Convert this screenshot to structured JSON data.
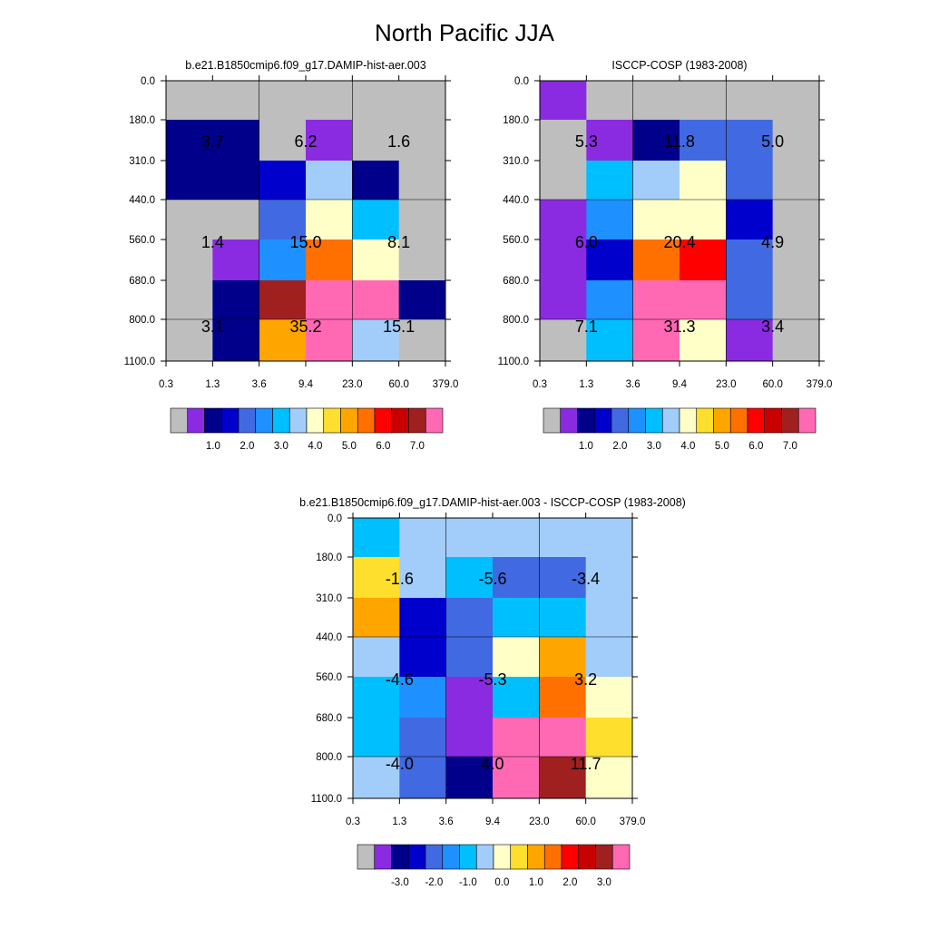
{
  "title": "North Pacific JJA",
  "colors": {
    "fill_missing": "#bebebe",
    "palette": [
      "#8a2be2",
      "#00008b",
      "#0000cd",
      "#4169e1",
      "#1e90ff",
      "#00bfff",
      "#a2cdfa",
      "#ffffc8",
      "#ffdf2e",
      "#ffa500",
      "#ff7000",
      "#ff0000",
      "#c80000",
      "#a02020",
      "#ff69b4"
    ]
  },
  "chart_data": [
    {
      "type": "heatmap",
      "title": "b.e21.B1850cmip6.f09_g17.DAMIP-hist-aer.003",
      "x_ticks": [
        "0.3",
        "1.3",
        "3.6",
        "9.4",
        "23.0",
        "60.0",
        "379.0"
      ],
      "y_ticks": [
        "0.0",
        "180.0",
        "310.0",
        "440.0",
        "560.0",
        "680.0",
        "800.0",
        "1100.0"
      ],
      "cells": [
        [
          -1,
          -1,
          -1,
          -1,
          -1,
          -1
        ],
        [
          1,
          1,
          -1,
          0,
          -1,
          -1
        ],
        [
          1,
          1,
          2,
          6,
          1,
          -1
        ],
        [
          -1,
          -1,
          3,
          7,
          5,
          -1
        ],
        [
          -1,
          0,
          4,
          10,
          7,
          -1
        ],
        [
          -1,
          1,
          13,
          14,
          14,
          1
        ],
        [
          -1,
          1,
          9,
          14,
          6,
          -1
        ]
      ],
      "box_labels": [
        [
          "3.7",
          "6.2",
          "1.6"
        ],
        [
          "1.4",
          "15.0",
          "8.1"
        ],
        [
          "3.1",
          "35.2",
          "15.1"
        ]
      ],
      "colorbar_labels": [
        "1.0",
        "2.0",
        "3.0",
        "4.0",
        "5.0",
        "6.0",
        "7.0"
      ]
    },
    {
      "type": "heatmap",
      "title": "ISCCP-COSP (1983-2008)",
      "x_ticks": [
        "0.3",
        "1.3",
        "3.6",
        "9.4",
        "23.0",
        "60.0",
        "379.0"
      ],
      "y_ticks": [
        "0.0",
        "180.0",
        "310.0",
        "440.0",
        "560.0",
        "680.0",
        "800.0",
        "1100.0"
      ],
      "cells": [
        [
          0,
          -1,
          -1,
          -1,
          -1,
          -1
        ],
        [
          -1,
          0,
          1,
          3,
          3,
          -1
        ],
        [
          -1,
          5,
          6,
          7,
          3,
          -1
        ],
        [
          0,
          4,
          7,
          7,
          2,
          -1
        ],
        [
          0,
          2,
          10,
          11,
          3,
          -1
        ],
        [
          0,
          4,
          14,
          14,
          3,
          -1
        ],
        [
          -1,
          5,
          14,
          7,
          0,
          -1
        ]
      ],
      "box_labels": [
        [
          "5.3",
          "11.8",
          "5.0"
        ],
        [
          "6.0",
          "20.4",
          "4.9"
        ],
        [
          "7.1",
          "31.3",
          "3.4"
        ]
      ],
      "colorbar_labels": [
        "1.0",
        "2.0",
        "3.0",
        "4.0",
        "5.0",
        "6.0",
        "7.0"
      ]
    },
    {
      "type": "heatmap",
      "title": "b.e21.B1850cmip6.f09_g17.DAMIP-hist-aer.003 - ISCCP-COSP (1983-2008)",
      "x_ticks": [
        "0.3",
        "1.3",
        "3.6",
        "9.4",
        "23.0",
        "60.0",
        "379.0"
      ],
      "y_ticks": [
        "0.0",
        "180.0",
        "310.0",
        "440.0",
        "560.0",
        "680.0",
        "800.0",
        "1100.0"
      ],
      "cells": [
        [
          5,
          6,
          6,
          6,
          6,
          6
        ],
        [
          8,
          6,
          5,
          3,
          3,
          6
        ],
        [
          9,
          2,
          3,
          5,
          5,
          6
        ],
        [
          6,
          2,
          3,
          7,
          9,
          6
        ],
        [
          5,
          4,
          0,
          5,
          10,
          7
        ],
        [
          5,
          3,
          0,
          14,
          14,
          8
        ],
        [
          6,
          3,
          1,
          14,
          13,
          7
        ]
      ],
      "box_labels": [
        [
          "-1.6",
          "-5.6",
          "-3.4"
        ],
        [
          "-4.6",
          "-5.3",
          "3.2"
        ],
        [
          "-4.0",
          "4.0",
          "11.7"
        ]
      ],
      "colorbar_labels": [
        "-3.0",
        "-2.0",
        "-1.0",
        "0.0",
        "1.0",
        "2.0",
        "3.0"
      ]
    }
  ]
}
